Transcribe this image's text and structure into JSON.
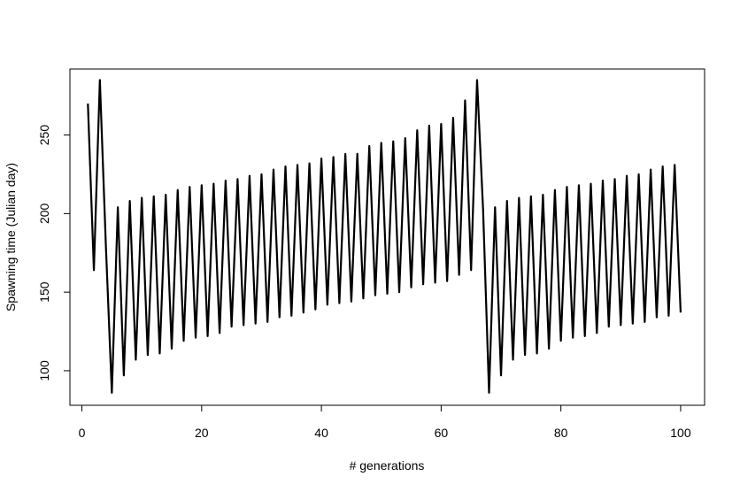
{
  "chart_data": {
    "type": "line",
    "title": "",
    "xlabel": "# generations",
    "ylabel": "Spawning time (Julian day)",
    "xlim": [
      -2,
      104
    ],
    "ylim": [
      78,
      292
    ],
    "xticks": [
      0,
      20,
      40,
      60,
      80,
      100
    ],
    "yticks": [
      100,
      150,
      200,
      250
    ],
    "grid": false,
    "series": [
      {
        "color": "#000000",
        "x": [
          1,
          2,
          3,
          4,
          5,
          6,
          7,
          8,
          9,
          10,
          11,
          12,
          13,
          14,
          15,
          16,
          17,
          18,
          19,
          20,
          21,
          22,
          23,
          24,
          25,
          26,
          27,
          28,
          29,
          30,
          31,
          32,
          33,
          34,
          35,
          36,
          37,
          38,
          39,
          40,
          41,
          42,
          43,
          44,
          45,
          46,
          47,
          48,
          49,
          50,
          51,
          52,
          53,
          54,
          55,
          56,
          57,
          58,
          59,
          60,
          61,
          62,
          63,
          64,
          65,
          66,
          67,
          68,
          69,
          70,
          71,
          72,
          73,
          74,
          75,
          76,
          77,
          78,
          79,
          80,
          81,
          82,
          83,
          84,
          85,
          86,
          87,
          88,
          89,
          90,
          91,
          92,
          93,
          94,
          95,
          96,
          97,
          98,
          99,
          100
        ],
        "y": [
          270,
          164,
          285,
          180,
          86,
          204,
          97,
          208,
          107,
          210,
          110,
          211,
          111,
          212,
          114,
          215,
          119,
          217,
          121,
          218,
          122,
          219,
          124,
          221,
          128,
          222,
          129,
          224,
          130,
          225,
          131,
          228,
          134,
          230,
          135,
          231,
          137,
          232,
          139,
          235,
          142,
          236,
          143,
          238,
          144,
          238,
          146,
          243,
          148,
          245,
          149,
          246,
          150,
          248,
          153,
          253,
          155,
          256,
          156,
          257,
          157,
          261,
          161,
          272,
          164,
          285,
          203,
          86,
          204,
          97,
          208,
          107,
          210,
          110,
          211,
          111,
          212,
          114,
          215,
          119,
          217,
          121,
          218,
          122,
          219,
          124,
          221,
          128,
          222,
          129,
          224,
          130,
          225,
          131,
          228,
          134,
          230,
          135,
          231,
          137
        ]
      }
    ]
  }
}
